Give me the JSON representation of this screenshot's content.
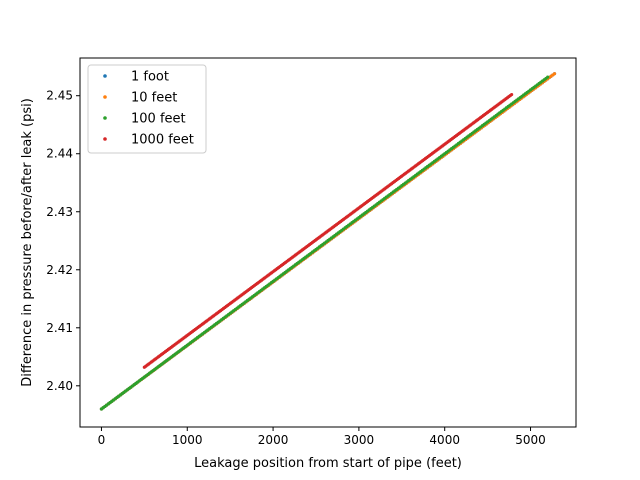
{
  "chart_data": {
    "type": "scatter",
    "title": "",
    "xlabel": "Leakage position from start of pipe (feet)",
    "ylabel": "Difference in pressure before/after leak (psi)",
    "xlim": [
      -250,
      5530
    ],
    "ylim": [
      2.3929,
      2.4565
    ],
    "x_ticks": [
      0,
      1000,
      2000,
      3000,
      4000,
      5000
    ],
    "y_ticks": [
      2.4,
      2.41,
      2.42,
      2.43,
      2.44,
      2.45
    ],
    "grid": false,
    "legend_position": "top-left",
    "series": [
      {
        "name": "1 foot",
        "color": "#1f77b4",
        "x_range": [
          0,
          5280
        ],
        "y_range": [
          2.396,
          2.4538
        ]
      },
      {
        "name": "10 feet",
        "color": "#ff7f0e",
        "x_range": [
          0,
          5280
        ],
        "y_range": [
          2.396,
          2.4538
        ]
      },
      {
        "name": "100 feet",
        "color": "#2ca02c",
        "x_range": [
          0,
          5200
        ],
        "y_range": [
          2.396,
          2.4532
        ]
      },
      {
        "name": "1000 feet",
        "color": "#d62728",
        "x_range": [
          500,
          4780
        ],
        "y_range": [
          2.4032,
          2.4502
        ]
      }
    ]
  }
}
